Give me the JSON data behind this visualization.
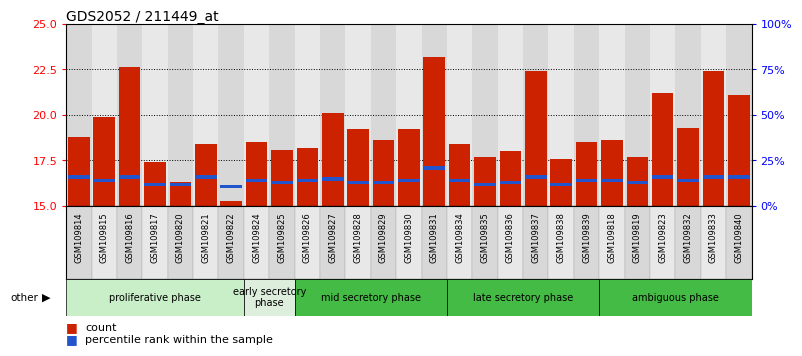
{
  "title": "GDS2052 / 211449_at",
  "samples": [
    "GSM109814",
    "GSM109815",
    "GSM109816",
    "GSM109817",
    "GSM109820",
    "GSM109821",
    "GSM109822",
    "GSM109824",
    "GSM109825",
    "GSM109826",
    "GSM109827",
    "GSM109828",
    "GSM109829",
    "GSM109830",
    "GSM109831",
    "GSM109834",
    "GSM109835",
    "GSM109836",
    "GSM109837",
    "GSM109838",
    "GSM109839",
    "GSM109818",
    "GSM109819",
    "GSM109823",
    "GSM109832",
    "GSM109833",
    "GSM109840"
  ],
  "count_values": [
    18.8,
    19.9,
    22.6,
    17.4,
    16.3,
    18.4,
    15.3,
    18.5,
    18.1,
    18.2,
    20.1,
    19.2,
    18.6,
    19.2,
    23.2,
    18.4,
    17.7,
    18.0,
    22.4,
    17.6,
    18.5,
    18.6,
    17.7,
    21.2,
    19.3,
    22.4,
    21.1
  ],
  "percentile_values": [
    16.5,
    16.3,
    16.5,
    16.1,
    16.1,
    16.5,
    16.0,
    16.3,
    16.2,
    16.3,
    16.4,
    16.2,
    16.2,
    16.3,
    17.0,
    16.3,
    16.1,
    16.2,
    16.5,
    16.1,
    16.3,
    16.3,
    16.2,
    16.5,
    16.3,
    16.5,
    16.5
  ],
  "phases": [
    {
      "label": "proliferative phase",
      "start": 0,
      "end": 7,
      "color": "#c8f0c8"
    },
    {
      "label": "early secretory\nphase",
      "start": 7,
      "end": 9,
      "color": "#e0ede0"
    },
    {
      "label": "mid secretory phase",
      "start": 9,
      "end": 15,
      "color": "#55cc55"
    },
    {
      "label": "late secretory phase",
      "start": 15,
      "end": 21,
      "color": "#55cc55"
    },
    {
      "label": "ambiguous phase",
      "start": 21,
      "end": 27,
      "color": "#55cc55"
    }
  ],
  "ylim_left": [
    15,
    25
  ],
  "ylim_right": [
    0,
    100
  ],
  "yticks_left": [
    15,
    17.5,
    20,
    22.5,
    25
  ],
  "yticks_right": [
    0,
    25,
    50,
    75,
    100
  ],
  "bar_color": "#cc2200",
  "percentile_color": "#2255cc",
  "base_value": 15,
  "col_bg_even": "#d8d8d8",
  "col_bg_odd": "#e8e8e8"
}
